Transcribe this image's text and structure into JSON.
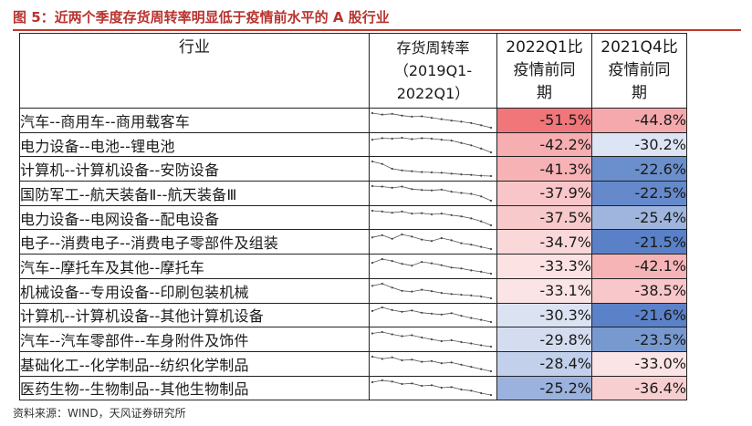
{
  "figure": {
    "title": "图 5：近两个季度存货周转率明显低于疫情前水平的 A 股行业",
    "source": "资料来源：WIND，天风证券研究所"
  },
  "table": {
    "headers": {
      "industry": "行业",
      "spark_l1": "存货周转率",
      "spark_l2": "（2019Q1-",
      "spark_l3": "2022Q1）",
      "q1_l1": "2022Q1比",
      "q1_l2": "疫情前同",
      "q1_l3": "期",
      "q4_l1": "2021Q4比",
      "q4_l2": "疫情前同",
      "q4_l3": "期"
    },
    "rows": [
      {
        "industry": "汽车--商用车--商用载客车",
        "q1": "-51.5%",
        "q4": "-44.8%",
        "q1_color": "#f0767a",
        "q4_color": "#f6a9ac",
        "trend": [
          9.5,
          9.1,
          9.3,
          8.8,
          8.5,
          8.6,
          8.2,
          7.8,
          7.4,
          7.1,
          6.7,
          6.1,
          5.4
        ]
      },
      {
        "industry": "电力设备--电池--锂电池",
        "q1": "-42.2%",
        "q4": "-30.2%",
        "q1_color": "#f7aeb1",
        "q4_color": "#dde4f3",
        "trend": [
          9.1,
          9.4,
          9.3,
          9.5,
          9.2,
          9.4,
          9.3,
          9.1,
          8.9,
          8.4,
          7.9,
          7.2,
          6.4
        ]
      },
      {
        "industry": "计算机--计算机设备--安防设备",
        "q1": "-41.3%",
        "q4": "-22.6%",
        "q1_color": "#f7b2b5",
        "q4_color": "#6a8fcc",
        "trend": [
          9.2,
          8.6,
          7.4,
          7.0,
          6.8,
          6.6,
          6.5,
          6.4,
          6.2,
          6.0,
          5.9,
          5.7,
          5.6
        ]
      },
      {
        "industry": "国防军工--航天装备Ⅱ--航天装备Ⅲ",
        "q1": "-37.9%",
        "q4": "-22.5%",
        "q1_color": "#f8c6c9",
        "q4_color": "#6689cb",
        "trend": [
          9.0,
          8.9,
          8.6,
          8.9,
          8.3,
          8.1,
          8.0,
          8.2,
          7.7,
          7.4,
          7.2,
          6.6,
          5.6
        ]
      },
      {
        "industry": "电力设备--电网设备--配电设备",
        "q1": "-37.5%",
        "q4": "-25.4%",
        "q1_color": "#f8c9cb",
        "q4_color": "#9fb5de",
        "trend": [
          9.2,
          9.0,
          8.7,
          9.0,
          8.5,
          8.6,
          8.3,
          8.5,
          8.1,
          7.8,
          7.3,
          6.6,
          5.6
        ]
      },
      {
        "industry": "电子--消费电子--消费电子零部件及组装",
        "q1": "-34.7%",
        "q4": "-21.5%",
        "q1_color": "#fad8d9",
        "q4_color": "#5a81c7",
        "trend": [
          8.6,
          8.9,
          8.4,
          9.0,
          8.7,
          8.3,
          8.1,
          8.5,
          8.2,
          7.8,
          7.6,
          7.3,
          7.0
        ]
      },
      {
        "industry": "汽车--摩托车及其他--摩托车",
        "q1": "-33.3%",
        "q4": "-42.1%",
        "q1_color": "#fce2e3",
        "q4_color": "#f6b4b7",
        "trend": [
          8.2,
          9.0,
          8.6,
          8.0,
          7.6,
          8.4,
          8.1,
          7.7,
          7.2,
          7.0,
          6.6,
          6.3,
          5.9
        ]
      },
      {
        "industry": "机械设备--专用设备--印刷包装机械",
        "q1": "-33.1%",
        "q4": "-38.5%",
        "q1_color": "#fbe4e5",
        "q4_color": "#f8c7c9",
        "trend": [
          8.5,
          9.1,
          8.0,
          7.1,
          6.9,
          7.4,
          7.0,
          6.5,
          6.2,
          6.0,
          5.8,
          5.5,
          5.0
        ]
      },
      {
        "industry": "计算机--计算机设备--其他计算机设备",
        "q1": "-30.3%",
        "q4": "-21.6%",
        "q1_color": "#dbe3f3",
        "q4_color": "#5b82c8",
        "trend": [
          8.4,
          9.2,
          8.6,
          8.2,
          8.5,
          8.0,
          7.8,
          7.6,
          7.9,
          7.3,
          6.8,
          6.4,
          5.9
        ]
      },
      {
        "industry": "汽车--汽车零部件--车身附件及饰件",
        "q1": "-29.8%",
        "q4": "-23.5%",
        "q1_color": "#d4ddf0",
        "q4_color": "#7899d0",
        "trend": [
          8.8,
          9.1,
          8.6,
          8.2,
          8.4,
          7.9,
          7.5,
          7.1,
          7.3,
          6.9,
          6.6,
          6.2,
          5.9
        ]
      },
      {
        "industry": "基础化工--化学制品--纺织化学制品",
        "q1": "-28.4%",
        "q4": "-33.0%",
        "q1_color": "#c2d0eb",
        "q4_color": "#fbe4e5",
        "trend": [
          9.0,
          8.7,
          8.9,
          8.5,
          8.6,
          8.3,
          8.4,
          8.1,
          8.2,
          7.9,
          7.6,
          7.3,
          7.0
        ]
      },
      {
        "industry": "医药生物--生物制品--其他生物制品",
        "q1": "-25.2%",
        "q4": "-36.4%",
        "q1_color": "#9bb2de",
        "q4_color": "#f8cfd1",
        "trend": [
          8.7,
          9.0,
          8.8,
          8.4,
          8.5,
          8.1,
          8.2,
          7.8,
          7.9,
          7.5,
          7.3,
          6.9,
          6.6
        ]
      }
    ]
  }
}
